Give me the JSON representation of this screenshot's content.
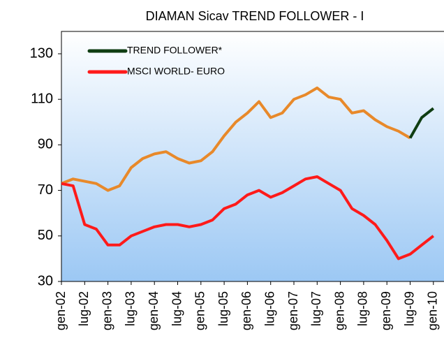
{
  "chart_data": {
    "type": "line",
    "title": "DIAMAN Sicav TREND FOLLOWER - I",
    "categories": [
      "gen-02",
      null,
      "lug-02",
      null,
      "gen-03",
      null,
      "lug-03",
      null,
      "gen-04",
      null,
      "lug-04",
      null,
      "gen-05",
      null,
      "lug-05",
      null,
      "gen-06",
      null,
      "lug-06",
      null,
      "gen-07",
      null,
      "lug-07",
      null,
      "gen-08",
      null,
      "lug-08",
      null,
      "gen-09",
      null,
      "lug-09",
      null,
      "gen-10"
    ],
    "series": [
      {
        "color": "#e8892a",
        "values": [
          73,
          75,
          74,
          73,
          70,
          72,
          80,
          84,
          86,
          87,
          84,
          82,
          83,
          87,
          94,
          100,
          104,
          109,
          102,
          104,
          110,
          112,
          115,
          111,
          110,
          104,
          105,
          101,
          98,
          96,
          93,
          null,
          null
        ]
      },
      {
        "name": "TREND FOLLOWER*",
        "color": "#0f3d12",
        "values": [
          null,
          null,
          null,
          null,
          null,
          null,
          null,
          null,
          null,
          null,
          null,
          null,
          null,
          null,
          null,
          null,
          null,
          null,
          null,
          null,
          null,
          null,
          null,
          null,
          null,
          null,
          null,
          null,
          null,
          null,
          93,
          102,
          106
        ]
      },
      {
        "name": "MSCI WORLD- EURO",
        "color": "#ff1a1a",
        "values": [
          73,
          72,
          55,
          53,
          46,
          46,
          50,
          52,
          54,
          55,
          55,
          54,
          55,
          57,
          62,
          64,
          68,
          70,
          67,
          69,
          72,
          75,
          76,
          73,
          70,
          62,
          59,
          55,
          48,
          40,
          42,
          46,
          50
        ]
      }
    ],
    "ylim": [
      30,
      130
    ],
    "yticks": [
      30,
      50,
      70,
      90,
      110,
      130
    ],
    "legend": "top-left"
  }
}
